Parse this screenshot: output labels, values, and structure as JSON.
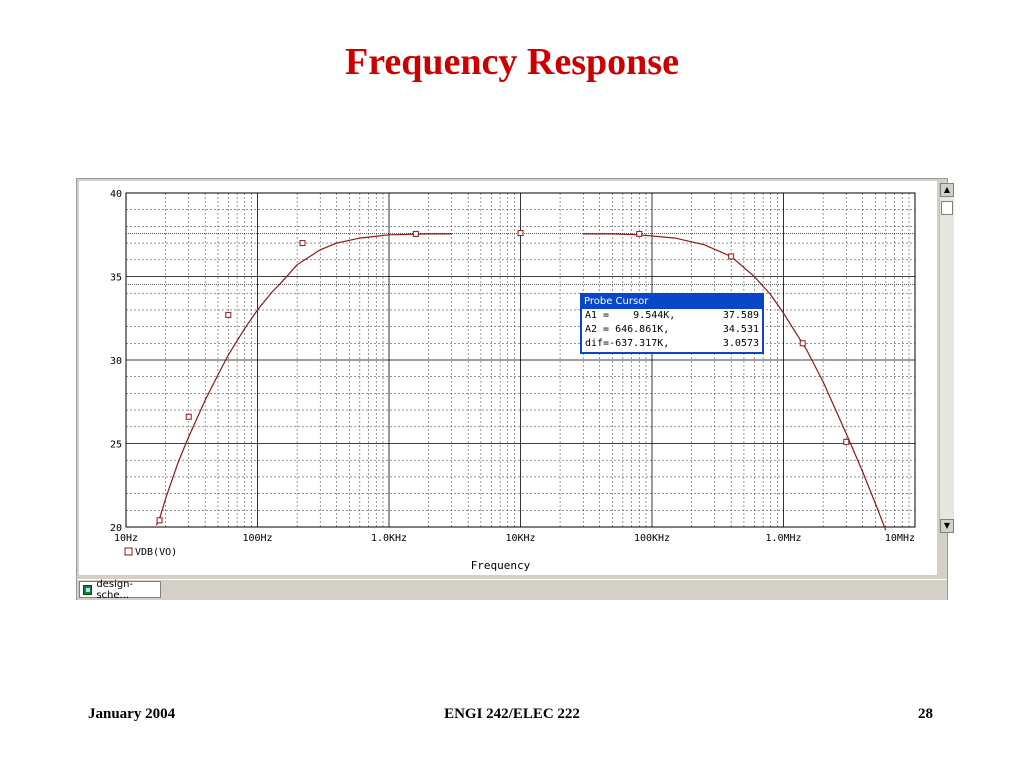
{
  "slide": {
    "title": "Frequency Response",
    "footer_left": "January 2004",
    "footer_center": "ENGI 242/ELEC 222",
    "footer_right": "28"
  },
  "taskbar": {
    "tab_label": "design-sche..."
  },
  "probe_cursor": {
    "title": "Probe Cursor",
    "rows": [
      {
        "label": "A1 =    9.544K,",
        "value": "37.589"
      },
      {
        "label": "A2 = 646.861K,",
        "value": "34.531"
      },
      {
        "label": "dif=-637.317K,",
        "value": "3.0573"
      }
    ]
  },
  "chart_data": {
    "type": "line",
    "xlabel": "Frequency",
    "xscale": "log",
    "xlim": [
      10,
      10000000
    ],
    "ylim": [
      20,
      40
    ],
    "grid": true,
    "x_ticks": [
      {
        "value": 10,
        "label": "10Hz"
      },
      {
        "value": 100,
        "label": "100Hz"
      },
      {
        "value": 1000,
        "label": "1.0KHz"
      },
      {
        "value": 10000,
        "label": "10KHz"
      },
      {
        "value": 100000,
        "label": "100KHz"
      },
      {
        "value": 1000000,
        "label": "1.0MHz"
      },
      {
        "value": 10000000,
        "label": "10MHz"
      }
    ],
    "y_ticks": [
      {
        "value": 20,
        "label": "20"
      },
      {
        "value": 25,
        "label": "25"
      },
      {
        "value": 30,
        "label": "30"
      },
      {
        "value": 35,
        "label": "35"
      },
      {
        "value": 40,
        "label": "40"
      }
    ],
    "legend": "bottom-left",
    "series": [
      {
        "name": "VDB(VO)",
        "color": "#8b1a1a",
        "segments": [
          [
            [
              17,
              20.1
            ],
            [
              18,
              20.5
            ],
            [
              20,
              21.7
            ],
            [
              25,
              23.9
            ],
            [
              30,
              25.4
            ],
            [
              40,
              27.6
            ],
            [
              50,
              29.1
            ],
            [
              60,
              30.3
            ],
            [
              80,
              31.9
            ],
            [
              100,
              33.0
            ],
            [
              130,
              34.1
            ],
            [
              150,
              34.6
            ],
            [
              200,
              35.7
            ],
            [
              300,
              36.6
            ],
            [
              400,
              37.0
            ],
            [
              600,
              37.3
            ],
            [
              1000,
              37.5
            ],
            [
              2000,
              37.55
            ],
            [
              3000,
              37.55
            ]
          ],
          [
            [
              30000,
              37.55
            ],
            [
              50000,
              37.55
            ],
            [
              80000,
              37.5
            ],
            [
              150000,
              37.3
            ],
            [
              250000,
              36.9
            ],
            [
              400000,
              36.2
            ],
            [
              600000,
              35.0
            ],
            [
              800000,
              33.9
            ],
            [
              1000000,
              32.8
            ],
            [
              1500000,
              30.6
            ],
            [
              2000000,
              28.7
            ],
            [
              3000000,
              25.6
            ],
            [
              4000000,
              23.3
            ],
            [
              5000000,
              21.4
            ],
            [
              6000000,
              19.8
            ]
          ]
        ],
        "markers": [
          [
            18,
            20.4
          ],
          [
            30,
            26.6
          ],
          [
            60,
            32.7
          ],
          [
            220,
            37.0
          ],
          [
            1600,
            37.55
          ],
          [
            10000,
            37.6
          ],
          [
            80000,
            37.55
          ],
          [
            400000,
            36.2
          ],
          [
            1400000,
            31.0
          ],
          [
            3000000,
            25.1
          ]
        ]
      }
    ],
    "cursors": [
      {
        "name": "A1",
        "x": 9544,
        "y": 37.589
      },
      {
        "name": "A2",
        "x": 646861,
        "y": 34.531
      }
    ]
  }
}
